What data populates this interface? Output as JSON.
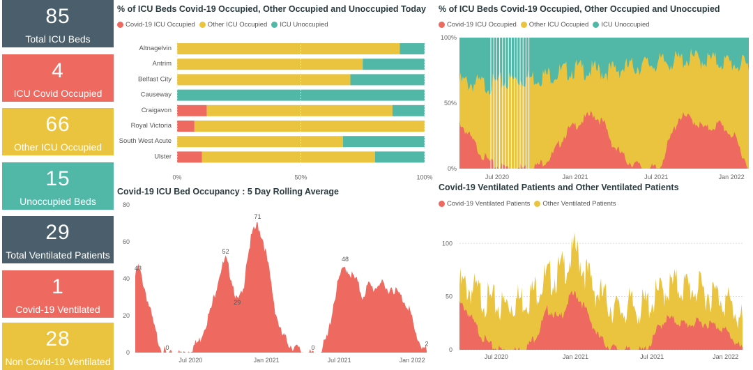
{
  "colors": {
    "covid": "#ee6a61",
    "other": "#eac43f",
    "unoccupied": "#51b8a8",
    "slate": "#4a5f6b"
  },
  "kpis": [
    {
      "value": "85",
      "label": "Total ICU Beds",
      "color": "slate"
    },
    {
      "value": "4",
      "label": "ICU Covid Occupied",
      "color": "red"
    },
    {
      "value": "66",
      "label": "Other ICU Occupied",
      "color": "yellow"
    },
    {
      "value": "15",
      "label": "Unoccupied Beds",
      "color": "teal"
    },
    {
      "value": "29",
      "label": "Total Ventilated Patients",
      "color": "slate"
    },
    {
      "value": "1",
      "label": "Covid-19 Ventilated",
      "color": "red"
    },
    {
      "value": "28",
      "label": "Non Covid-19 Ventilated",
      "color": "yellow"
    }
  ],
  "legend_occupancy": [
    "Covid-19 ICU Occupied",
    "Other ICU Occupied",
    "ICU Unoccupied"
  ],
  "legend_ventilated": [
    "Covid-19 Ventilated Patients",
    "Other Ventilated Patients"
  ],
  "chart_data": [
    {
      "type": "bar",
      "title": "% of ICU Beds Covid-19 Occupied, Other Occupied and Unoccupied Today",
      "orientation": "horizontal-stacked-100",
      "categories": [
        "Altnagelvin",
        "Antrim",
        "Belfast City",
        "Causeway",
        "Craigavon",
        "Royal Victoria",
        "South West Acute",
        "Ulster"
      ],
      "series": [
        {
          "name": "Covid-19 ICU Occupied",
          "values": [
            0,
            0,
            0,
            0,
            12,
            7,
            0,
            10
          ]
        },
        {
          "name": "Other ICU Occupied",
          "values": [
            90,
            75,
            70,
            0,
            75,
            93,
            67,
            70
          ]
        },
        {
          "name": "ICU Unoccupied",
          "values": [
            10,
            25,
            30,
            100,
            13,
            0,
            33,
            20
          ]
        }
      ],
      "xticks": [
        "0%",
        "50%",
        "100%"
      ]
    },
    {
      "type": "area",
      "title": "% of ICU Beds Covid-19 Occupied, Other Occupied and Unoccupied",
      "stacked": "100%",
      "series_names": [
        "Covid-19 ICU Occupied",
        "Other ICU Occupied",
        "ICU Unoccupied"
      ],
      "x_ticks": [
        "Jul 2020",
        "Jan 2021",
        "Jul 2021",
        "Jan 2022"
      ],
      "y_ticks": [
        "0%",
        "50%",
        "100%"
      ],
      "covid_pct_keypoints": [
        [
          0,
          38
        ],
        [
          0.03,
          28
        ],
        [
          0.08,
          12
        ],
        [
          0.12,
          4
        ],
        [
          0.2,
          2
        ],
        [
          0.27,
          4
        ],
        [
          0.32,
          12
        ],
        [
          0.37,
          30
        ],
        [
          0.42,
          38
        ],
        [
          0.46,
          44
        ],
        [
          0.5,
          36
        ],
        [
          0.53,
          20
        ],
        [
          0.58,
          8
        ],
        [
          0.64,
          2
        ],
        [
          0.69,
          2
        ],
        [
          0.72,
          20
        ],
        [
          0.76,
          42
        ],
        [
          0.8,
          40
        ],
        [
          0.85,
          32
        ],
        [
          0.9,
          36
        ],
        [
          0.95,
          26
        ],
        [
          0.98,
          12
        ],
        [
          1,
          2
        ]
      ],
      "total_occupied_pct_keypoints": [
        [
          0,
          70
        ],
        [
          0.1,
          68
        ],
        [
          0.2,
          72
        ],
        [
          0.3,
          75
        ],
        [
          0.4,
          80
        ],
        [
          0.5,
          78
        ],
        [
          0.6,
          82
        ],
        [
          0.7,
          85
        ],
        [
          0.8,
          88
        ],
        [
          0.9,
          86
        ],
        [
          1,
          82
        ]
      ]
    },
    {
      "type": "area",
      "title": "Covid-19 ICU Bed Occupancy : 5 Day Rolling Average",
      "ylim": [
        0,
        80
      ],
      "y_ticks": [
        "0",
        "20",
        "40",
        "60",
        "80"
      ],
      "x_ticks": [
        "Jul 2020",
        "Jan 2021",
        "Jul 2021",
        "Jan 2022"
      ],
      "annotations": [
        "43",
        "0",
        "52",
        "29",
        "71",
        "0",
        "48",
        "2"
      ],
      "keypoints": [
        [
          0,
          43
        ],
        [
          0.01,
          48
        ],
        [
          0.03,
          38
        ],
        [
          0.05,
          25
        ],
        [
          0.07,
          12
        ],
        [
          0.09,
          4
        ],
        [
          0.11,
          0
        ],
        [
          0.14,
          0
        ],
        [
          0.18,
          2
        ],
        [
          0.22,
          8
        ],
        [
          0.26,
          25
        ],
        [
          0.29,
          45
        ],
        [
          0.31,
          52
        ],
        [
          0.33,
          42
        ],
        [
          0.35,
          29
        ],
        [
          0.37,
          34
        ],
        [
          0.38,
          50
        ],
        [
          0.4,
          65
        ],
        [
          0.42,
          71
        ],
        [
          0.44,
          62
        ],
        [
          0.46,
          45
        ],
        [
          0.48,
          25
        ],
        [
          0.5,
          12
        ],
        [
          0.53,
          6
        ],
        [
          0.56,
          3
        ],
        [
          0.59,
          1
        ],
        [
          0.61,
          0
        ],
        [
          0.63,
          0
        ],
        [
          0.66,
          10
        ],
        [
          0.68,
          28
        ],
        [
          0.7,
          42
        ],
        [
          0.72,
          48
        ],
        [
          0.74,
          44
        ],
        [
          0.76,
          40
        ],
        [
          0.78,
          32
        ],
        [
          0.8,
          38
        ],
        [
          0.82,
          36
        ],
        [
          0.84,
          40
        ],
        [
          0.86,
          35
        ],
        [
          0.88,
          37
        ],
        [
          0.9,
          34
        ],
        [
          0.92,
          30
        ],
        [
          0.94,
          26
        ],
        [
          0.96,
          12
        ],
        [
          0.98,
          6
        ],
        [
          1,
          2
        ]
      ]
    },
    {
      "type": "area",
      "title": "Covid-19 Ventilated Patients and Other Ventilated Patients",
      "stacked": true,
      "series_names": [
        "Covid-19 Ventilated Patients",
        "Other Ventilated Patients"
      ],
      "ylim": [
        0,
        110
      ],
      "y_ticks": [
        "0",
        "50",
        "100"
      ],
      "x_ticks": [
        "Jul 2020",
        "Jan 2021",
        "Jul 2021",
        "Jan 2022"
      ],
      "covid_keypoints": [
        [
          0,
          45
        ],
        [
          0.02,
          42
        ],
        [
          0.05,
          28
        ],
        [
          0.08,
          15
        ],
        [
          0.11,
          6
        ],
        [
          0.15,
          2
        ],
        [
          0.2,
          1
        ],
        [
          0.24,
          5
        ],
        [
          0.28,
          20
        ],
        [
          0.31,
          40
        ],
        [
          0.33,
          38
        ],
        [
          0.35,
          30
        ],
        [
          0.37,
          40
        ],
        [
          0.39,
          52
        ],
        [
          0.41,
          55
        ],
        [
          0.43,
          48
        ],
        [
          0.46,
          32
        ],
        [
          0.49,
          15
        ],
        [
          0.53,
          5
        ],
        [
          0.57,
          2
        ],
        [
          0.61,
          1
        ],
        [
          0.65,
          1
        ],
        [
          0.68,
          10
        ],
        [
          0.7,
          22
        ],
        [
          0.73,
          32
        ],
        [
          0.76,
          30
        ],
        [
          0.8,
          26
        ],
        [
          0.84,
          28
        ],
        [
          0.88,
          27
        ],
        [
          0.92,
          24
        ],
        [
          0.95,
          18
        ],
        [
          0.98,
          8
        ],
        [
          1,
          2
        ]
      ],
      "total_keypoints": [
        [
          0,
          70
        ],
        [
          0.05,
          65
        ],
        [
          0.1,
          55
        ],
        [
          0.15,
          50
        ],
        [
          0.2,
          55
        ],
        [
          0.25,
          60
        ],
        [
          0.3,
          75
        ],
        [
          0.34,
          78
        ],
        [
          0.38,
          90
        ],
        [
          0.41,
          103
        ],
        [
          0.44,
          85
        ],
        [
          0.48,
          65
        ],
        [
          0.52,
          55
        ],
        [
          0.56,
          45
        ],
        [
          0.6,
          50
        ],
        [
          0.64,
          48
        ],
        [
          0.68,
          55
        ],
        [
          0.72,
          65
        ],
        [
          0.76,
          70
        ],
        [
          0.8,
          68
        ],
        [
          0.84,
          66
        ],
        [
          0.88,
          62
        ],
        [
          0.92,
          60
        ],
        [
          0.96,
          50
        ],
        [
          1,
          35
        ]
      ]
    }
  ]
}
